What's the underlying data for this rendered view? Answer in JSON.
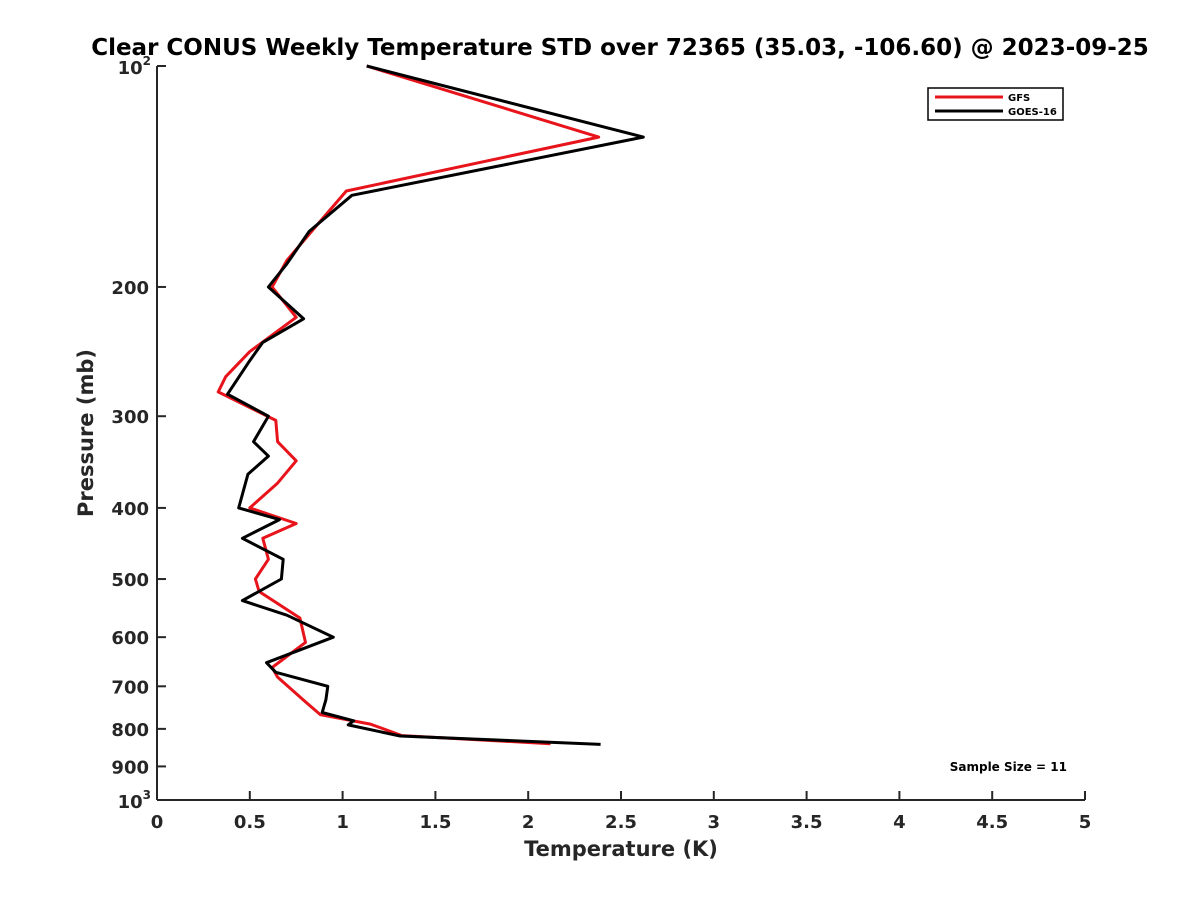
{
  "chart_data": {
    "type": "line",
    "title": "Clear CONUS Weekly Temperature STD over 72365 (35.03, -106.60) @ 2023-09-25",
    "xlabel": "Temperature (K)",
    "ylabel": "Pressure (mb)",
    "xlim": [
      0,
      5
    ],
    "ylim": [
      100,
      1000
    ],
    "yscale": "log",
    "y_reversed": true,
    "grid": false,
    "legend_position": "top-right",
    "x_ticks": [
      "0",
      "0.5",
      "1",
      "1.5",
      "2",
      "2.5",
      "3",
      "3.5",
      "4",
      "4.5",
      "5"
    ],
    "x_tick_values": [
      0,
      0.5,
      1,
      1.5,
      2,
      2.5,
      3,
      3.5,
      4,
      4.5,
      5
    ],
    "y_ticks": [
      {
        "value": 100,
        "label": "10",
        "sup": "2"
      },
      {
        "value": 200,
        "label": "200",
        "sup": ""
      },
      {
        "value": 300,
        "label": "300",
        "sup": ""
      },
      {
        "value": 400,
        "label": "400",
        "sup": ""
      },
      {
        "value": 500,
        "label": "500",
        "sup": ""
      },
      {
        "value": 600,
        "label": "600",
        "sup": ""
      },
      {
        "value": 700,
        "label": "700",
        "sup": ""
      },
      {
        "value": 800,
        "label": "800",
        "sup": ""
      },
      {
        "value": 900,
        "label": "900",
        "sup": ""
      },
      {
        "value": 1000,
        "label": "10",
        "sup": "3"
      }
    ],
    "annotation": "Sample Size = 11",
    "series": [
      {
        "name": "GFS",
        "color": "#e8141b",
        "points": [
          [
            1.13,
            100
          ],
          [
            2.38,
            125
          ],
          [
            1.02,
            148
          ],
          [
            0.85,
            166
          ],
          [
            0.7,
            184
          ],
          [
            0.62,
            200
          ],
          [
            0.75,
            220
          ],
          [
            0.5,
            245
          ],
          [
            0.37,
            265
          ],
          [
            0.33,
            278
          ],
          [
            0.64,
            304
          ],
          [
            0.65,
            325
          ],
          [
            0.75,
            345
          ],
          [
            0.65,
            370
          ],
          [
            0.5,
            400
          ],
          [
            0.75,
            420
          ],
          [
            0.57,
            440
          ],
          [
            0.6,
            470
          ],
          [
            0.53,
            500
          ],
          [
            0.55,
            520
          ],
          [
            0.77,
            565
          ],
          [
            0.8,
            610
          ],
          [
            0.62,
            660
          ],
          [
            0.65,
            680
          ],
          [
            0.8,
            735
          ],
          [
            0.88,
            765
          ],
          [
            1.15,
            788
          ],
          [
            1.32,
            817
          ],
          [
            2.12,
            838
          ]
        ]
      },
      {
        "name": "GOES-16",
        "color": "#000000",
        "points": [
          [
            1.13,
            100
          ],
          [
            2.62,
            125
          ],
          [
            1.05,
            150
          ],
          [
            0.82,
            168
          ],
          [
            0.7,
            186
          ],
          [
            0.6,
            200
          ],
          [
            0.79,
            221
          ],
          [
            0.57,
            238
          ],
          [
            0.5,
            252
          ],
          [
            0.38,
            280
          ],
          [
            0.6,
            300
          ],
          [
            0.52,
            325
          ],
          [
            0.6,
            340
          ],
          [
            0.49,
            360
          ],
          [
            0.44,
            400
          ],
          [
            0.66,
            415
          ],
          [
            0.46,
            440
          ],
          [
            0.68,
            470
          ],
          [
            0.67,
            500
          ],
          [
            0.46,
            535
          ],
          [
            0.7,
            560
          ],
          [
            0.95,
            600
          ],
          [
            0.59,
            650
          ],
          [
            0.64,
            670
          ],
          [
            0.92,
            700
          ],
          [
            0.91,
            730
          ],
          [
            0.89,
            760
          ],
          [
            1.06,
            780
          ],
          [
            1.03,
            790
          ],
          [
            1.31,
            818
          ],
          [
            2.39,
            840
          ]
        ]
      }
    ]
  }
}
